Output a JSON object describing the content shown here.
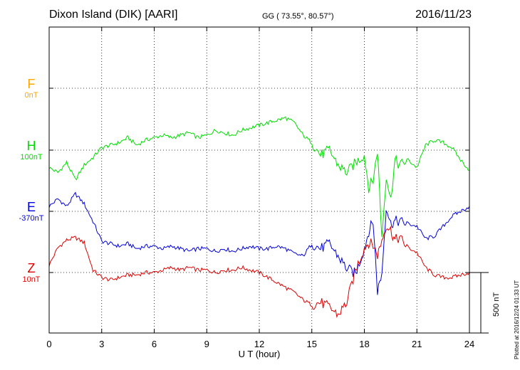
{
  "header": {
    "station": "Dixon Island (DIK)  [AARI]",
    "coords": "GG ( 73.55°,  80.57°)",
    "date": "2016/11/23"
  },
  "footer": {
    "plotted": "Plotted at 2016/12/24 01:33 UT",
    "scale": "500 nT"
  },
  "components": [
    {
      "key": "F",
      "letter": "F",
      "baseline": "0nT",
      "color": "#ffa500"
    },
    {
      "key": "H",
      "letter": "H",
      "baseline": "100nT",
      "color": "#00dd00"
    },
    {
      "key": "E",
      "letter": "E",
      "baseline": "-370nT",
      "color": "#0000dd"
    },
    {
      "key": "Z",
      "letter": "Z",
      "baseline": "10nT",
      "color": "#dd0000"
    }
  ],
  "chart_data": {
    "type": "line",
    "xlabel": "U T (hour)",
    "xlim": [
      0,
      24
    ],
    "xticks": [
      "0",
      "3",
      "6",
      "9",
      "12",
      "15",
      "18",
      "21",
      "24"
    ],
    "scale_bar_nT": 500,
    "grid": true,
    "series": [
      {
        "name": "H",
        "color": "#00dd00",
        "baseline_nT": 100,
        "x": [
          0,
          0.5,
          1,
          1.5,
          2,
          2.5,
          3,
          3.5,
          4,
          4.5,
          5,
          5.5,
          6,
          6.5,
          7,
          7.5,
          8,
          8.5,
          9,
          9.5,
          10,
          10.5,
          11,
          11.5,
          12,
          12.5,
          13,
          13.5,
          14,
          14.5,
          15,
          15.5,
          16,
          16.5,
          17,
          17.5,
          18,
          18.25,
          18.5,
          18.75,
          19,
          19.25,
          19.5,
          19.75,
          20,
          20.5,
          21,
          21.5,
          22,
          22.5,
          23,
          23.5,
          24
        ],
        "y": [
          -70,
          -90,
          -50,
          -120,
          -60,
          -30,
          10,
          20,
          30,
          50,
          20,
          40,
          50,
          60,
          50,
          60,
          70,
          50,
          60,
          80,
          70,
          60,
          80,
          90,
          100,
          110,
          120,
          130,
          110,
          60,
          30,
          -20,
          0,
          -60,
          -90,
          -50,
          -20,
          -150,
          -120,
          0,
          -350,
          -100,
          -200,
          -40,
          -60,
          -40,
          -70,
          20,
          40,
          30,
          10,
          -40,
          -80
        ]
      },
      {
        "name": "E",
        "color": "#0000dd",
        "baseline_nT": -370,
        "x": [
          0,
          0.5,
          1,
          1.5,
          2,
          2.5,
          3,
          3.5,
          4,
          4.5,
          5,
          5.5,
          6,
          6.5,
          7,
          7.5,
          8,
          8.5,
          9,
          9.5,
          10,
          10.5,
          11,
          11.5,
          12,
          12.5,
          13,
          13.5,
          14,
          14.5,
          15,
          15.5,
          16,
          16.5,
          17,
          17.5,
          18,
          18.25,
          18.5,
          18.75,
          19,
          19.25,
          19.5,
          19.75,
          20,
          20.5,
          21,
          21.5,
          22,
          22.5,
          23,
          23.5,
          24
        ],
        "y": [
          20,
          50,
          20,
          70,
          30,
          -40,
          -120,
          -130,
          -140,
          -130,
          -150,
          -140,
          -140,
          -150,
          -140,
          -150,
          -160,
          -150,
          -150,
          -160,
          -150,
          -160,
          -150,
          -140,
          -150,
          -150,
          -140,
          -150,
          -170,
          -180,
          -130,
          -150,
          -130,
          -180,
          -230,
          -250,
          -150,
          -80,
          -40,
          -320,
          -250,
          20,
          -50,
          -40,
          -40,
          -50,
          -60,
          -110,
          -100,
          -60,
          -20,
          0,
          20
        ]
      },
      {
        "name": "Z",
        "color": "#dd0000",
        "baseline_nT": 10,
        "x": [
          0,
          0.5,
          1,
          1.5,
          2,
          2.5,
          3,
          3.5,
          4,
          4.5,
          5,
          5.5,
          6,
          6.5,
          7,
          7.5,
          8,
          8.5,
          9,
          9.5,
          10,
          10.5,
          11,
          11.5,
          12,
          12.5,
          13,
          13.5,
          14,
          14.5,
          15,
          15.5,
          16,
          16.5,
          17,
          17.5,
          18,
          18.25,
          18.5,
          18.75,
          19,
          19.25,
          19.5,
          19.75,
          20,
          20.5,
          21,
          21.5,
          22,
          22.5,
          23,
          23.5,
          24
        ],
        "y": [
          30,
          100,
          130,
          140,
          120,
          10,
          -20,
          -30,
          -20,
          -10,
          -10,
          0,
          0,
          10,
          20,
          10,
          20,
          10,
          10,
          0,
          10,
          10,
          20,
          10,
          0,
          -20,
          -40,
          -60,
          -80,
          -110,
          -130,
          -120,
          -140,
          -170,
          -120,
          10,
          100,
          120,
          110,
          70,
          130,
          190,
          170,
          130,
          140,
          100,
          80,
          20,
          -10,
          -20,
          -20,
          -10,
          0
        ]
      }
    ]
  }
}
